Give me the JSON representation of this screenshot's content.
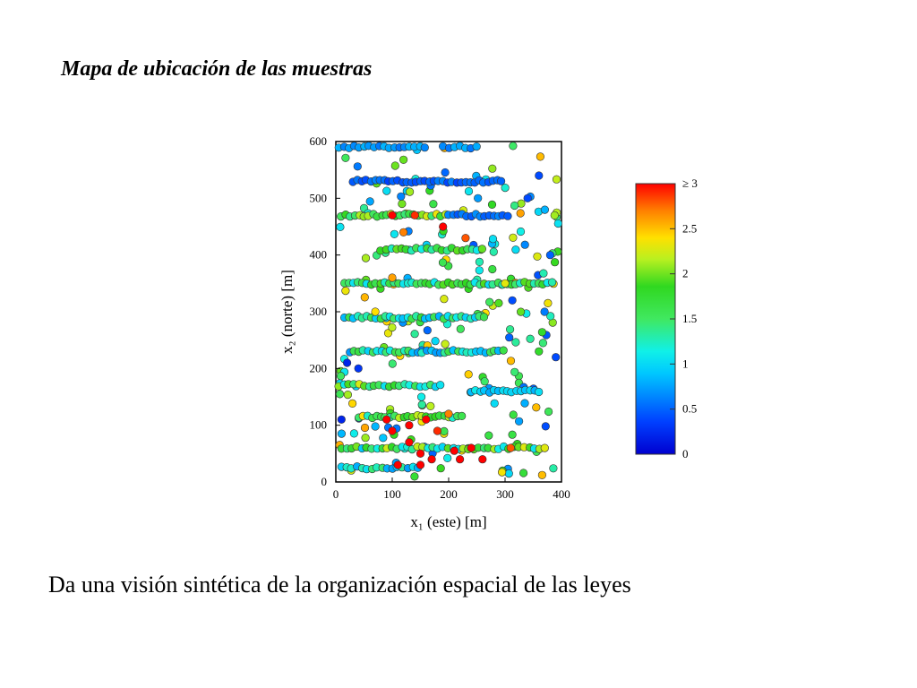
{
  "slide": {
    "title": "Mapa de ubicación de las muestras",
    "caption": "Da una visión sintética de la organización espacial de las leyes"
  },
  "chart_data": {
    "type": "scatter",
    "title": "",
    "xlabel": "x₁ (este) [m]",
    "ylabel": "x₂ (norte) [m]",
    "xlim": [
      0,
      400
    ],
    "ylim": [
      0,
      600
    ],
    "x_ticks": [
      "0",
      "100",
      "200",
      "300",
      "400"
    ],
    "y_ticks": [
      "0",
      "100",
      "200",
      "300",
      "400",
      "500",
      "600"
    ],
    "grid": false,
    "colorbar": {
      "range": [
        0,
        3
      ],
      "tick_labels": [
        "0",
        "0.5",
        "1",
        "1.5",
        "2",
        "2.5",
        "≥ 3"
      ],
      "colormap": "jet"
    },
    "point_stroke_color": "#333333",
    "rows": [
      {
        "y": 590,
        "x_start": 5,
        "x_end": 165,
        "step": 9,
        "base": 0.7,
        "var": 0.15
      },
      {
        "y": 590,
        "x_start": 190,
        "x_end": 250,
        "step": 10,
        "base": 0.7,
        "var": 0.15
      },
      {
        "y": 530,
        "x_start": 30,
        "x_end": 300,
        "step": 8,
        "base": 0.5,
        "var": 0.15
      },
      {
        "y": 470,
        "x_start": 10,
        "x_end": 200,
        "step": 8,
        "base": 1.9,
        "var": 0.5
      },
      {
        "y": 470,
        "x_start": 200,
        "x_end": 310,
        "step": 8,
        "base": 0.6,
        "var": 0.15
      },
      {
        "y": 410,
        "x_start": 80,
        "x_end": 260,
        "step": 9,
        "base": 1.5,
        "var": 0.5
      },
      {
        "y": 350,
        "x_start": 15,
        "x_end": 390,
        "step": 8,
        "base": 1.5,
        "var": 0.5
      },
      {
        "y": 290,
        "x_start": 15,
        "x_end": 270,
        "step": 8,
        "base": 1.3,
        "var": 0.5
      },
      {
        "y": 230,
        "x_start": 25,
        "x_end": 300,
        "step": 8,
        "base": 1.2,
        "var": 0.5
      },
      {
        "y": 170,
        "x_start": 5,
        "x_end": 190,
        "step": 9,
        "base": 1.6,
        "var": 0.7
      },
      {
        "y": 160,
        "x_start": 240,
        "x_end": 360,
        "step": 8,
        "base": 0.9,
        "var": 0.2
      },
      {
        "y": 115,
        "x_start": 40,
        "x_end": 230,
        "step": 8,
        "base": 1.8,
        "var": 0.6
      },
      {
        "y": 60,
        "x_start": 10,
        "x_end": 370,
        "step": 9,
        "base": 1.6,
        "var": 0.7
      },
      {
        "y": 25,
        "x_start": 10,
        "x_end": 150,
        "step": 9,
        "base": 1.1,
        "var": 0.4
      }
    ],
    "scatter_region": {
      "x_range": [
        5,
        395
      ],
      "y_range": [
        5,
        595
      ],
      "count": 200,
      "value_range": [
        0.4,
        2.6
      ]
    },
    "highlight_points": [
      {
        "x": 100,
        "y": 470,
        "v": 3.0
      },
      {
        "x": 140,
        "y": 470,
        "v": 2.9
      },
      {
        "x": 190,
        "y": 450,
        "v": 3.0
      },
      {
        "x": 120,
        "y": 440,
        "v": 2.7
      },
      {
        "x": 230,
        "y": 430,
        "v": 2.8
      },
      {
        "x": 100,
        "y": 360,
        "v": 2.6
      },
      {
        "x": 70,
        "y": 300,
        "v": 2.4
      },
      {
        "x": 90,
        "y": 110,
        "v": 3.0
      },
      {
        "x": 100,
        "y": 90,
        "v": 3.0
      },
      {
        "x": 130,
        "y": 70,
        "v": 3.0
      },
      {
        "x": 150,
        "y": 50,
        "v": 3.0
      },
      {
        "x": 170,
        "y": 40,
        "v": 3.0
      },
      {
        "x": 210,
        "y": 55,
        "v": 3.0
      },
      {
        "x": 220,
        "y": 40,
        "v": 3.0
      },
      {
        "x": 260,
        "y": 40,
        "v": 3.0
      },
      {
        "x": 310,
        "y": 60,
        "v": 2.8
      },
      {
        "x": 130,
        "y": 100,
        "v": 3.0
      },
      {
        "x": 160,
        "y": 110,
        "v": 3.0
      },
      {
        "x": 180,
        "y": 90,
        "v": 2.9
      },
      {
        "x": 200,
        "y": 120,
        "v": 2.7
      },
      {
        "x": 110,
        "y": 30,
        "v": 3.0
      },
      {
        "x": 150,
        "y": 30,
        "v": 3.0
      },
      {
        "x": 240,
        "y": 60,
        "v": 3.0
      },
      {
        "x": 300,
        "y": 350,
        "v": 2.3
      },
      {
        "x": 340,
        "y": 500,
        "v": 0.4
      },
      {
        "x": 360,
        "y": 540,
        "v": 0.4
      },
      {
        "x": 390,
        "y": 220,
        "v": 0.4
      },
      {
        "x": 20,
        "y": 210,
        "v": 0.2
      },
      {
        "x": 40,
        "y": 200,
        "v": 0.3
      },
      {
        "x": 10,
        "y": 110,
        "v": 0.2
      },
      {
        "x": 370,
        "y": 300,
        "v": 0.6
      },
      {
        "x": 380,
        "y": 400,
        "v": 0.5
      },
      {
        "x": 360,
        "y": 230,
        "v": 1.8
      }
    ]
  }
}
